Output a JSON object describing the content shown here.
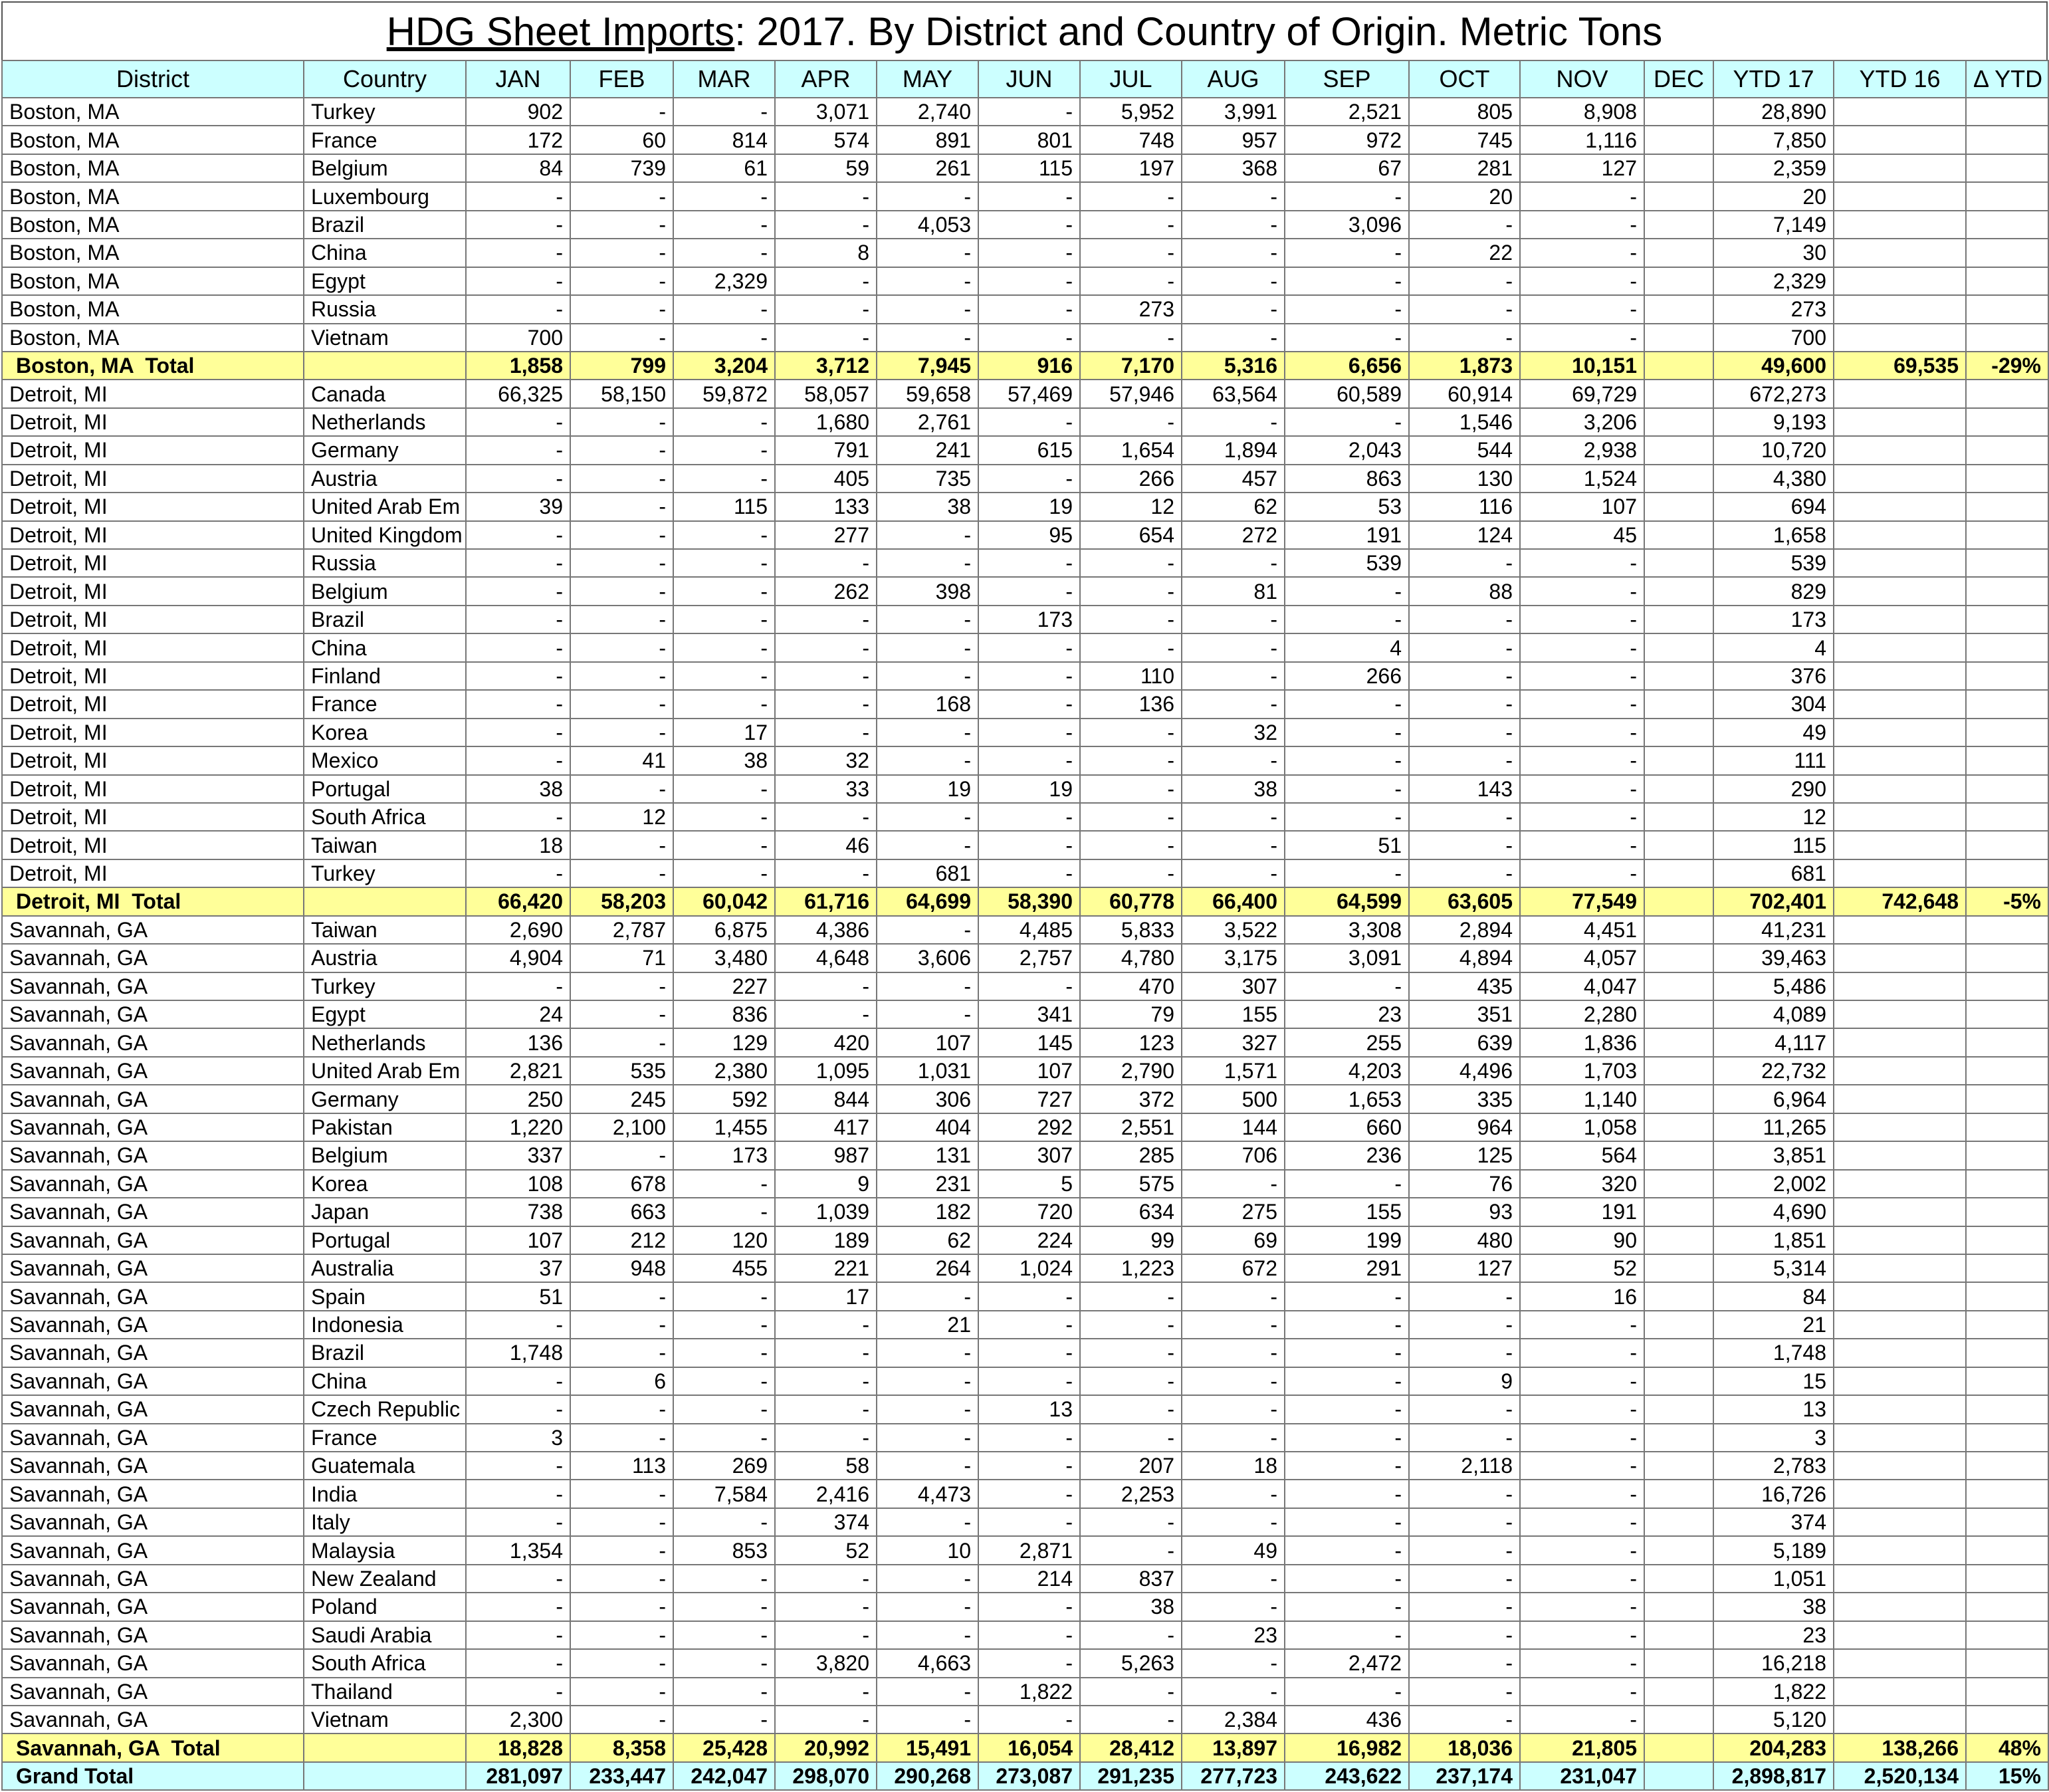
{
  "title": {
    "underlined": "HDG Sheet Imports",
    "rest": ": 2017. By District and Country of Origin. Metric Tons"
  },
  "columns": [
    "District",
    "Country",
    "JAN",
    "FEB",
    "MAR",
    "APR",
    "MAY",
    "JUN",
    "JUL",
    "AUG",
    "SEP",
    "OCT",
    "NOV",
    "DEC",
    "YTD 17",
    "YTD 16",
    "Δ YTD"
  ],
  "groups": [
    {
      "rows": [
        [
          "Boston, MA",
          "Turkey",
          "902",
          "-",
          "-",
          "3,071",
          "2,740",
          "-",
          "5,952",
          "3,991",
          "2,521",
          "805",
          "8,908",
          null,
          "28,890",
          null,
          null
        ],
        [
          "Boston, MA",
          "France",
          "172",
          "60",
          "814",
          "574",
          "891",
          "801",
          "748",
          "957",
          "972",
          "745",
          "1,116",
          null,
          "7,850",
          null,
          null
        ],
        [
          "Boston, MA",
          "Belgium",
          "84",
          "739",
          "61",
          "59",
          "261",
          "115",
          "197",
          "368",
          "67",
          "281",
          "127",
          null,
          "2,359",
          null,
          null
        ],
        [
          "Boston, MA",
          "Luxembourg",
          "-",
          "-",
          "-",
          "-",
          "-",
          "-",
          "-",
          "-",
          "-",
          "20",
          "-",
          null,
          "20",
          null,
          null
        ],
        [
          "Boston, MA",
          "Brazil",
          "-",
          "-",
          "-",
          "-",
          "4,053",
          "-",
          "-",
          "-",
          "3,096",
          "-",
          "-",
          null,
          "7,149",
          null,
          null
        ],
        [
          "Boston, MA",
          "China",
          "-",
          "-",
          "-",
          "8",
          "-",
          "-",
          "-",
          "-",
          "-",
          "22",
          "-",
          null,
          "30",
          null,
          null
        ],
        [
          "Boston, MA",
          "Egypt",
          "-",
          "-",
          "2,329",
          "-",
          "-",
          "-",
          "-",
          "-",
          "-",
          "-",
          "-",
          null,
          "2,329",
          null,
          null
        ],
        [
          "Boston, MA",
          "Russia",
          "-",
          "-",
          "-",
          "-",
          "-",
          "-",
          "273",
          "-",
          "-",
          "-",
          "-",
          null,
          "273",
          null,
          null
        ],
        [
          "Boston, MA",
          "Vietnam",
          "700",
          "-",
          "-",
          "-",
          "-",
          "-",
          "-",
          "-",
          "-",
          "-",
          "-",
          null,
          "700",
          null,
          null
        ]
      ],
      "total": [
        "Boston, MA  Total",
        null,
        "1,858",
        "799",
        "3,204",
        "3,712",
        "7,945",
        "916",
        "7,170",
        "5,316",
        "6,656",
        "1,873",
        "10,151",
        null,
        "49,600",
        "69,535",
        "-29%"
      ]
    },
    {
      "rows": [
        [
          "Detroit, MI",
          "Canada",
          "66,325",
          "58,150",
          "59,872",
          "58,057",
          "59,658",
          "57,469",
          "57,946",
          "63,564",
          "60,589",
          "60,914",
          "69,729",
          null,
          "672,273",
          null,
          null
        ],
        [
          "Detroit, MI",
          "Netherlands",
          "-",
          "-",
          "-",
          "1,680",
          "2,761",
          "-",
          "-",
          "-",
          "-",
          "1,546",
          "3,206",
          null,
          "9,193",
          null,
          null
        ],
        [
          "Detroit, MI",
          "Germany",
          "-",
          "-",
          "-",
          "791",
          "241",
          "615",
          "1,654",
          "1,894",
          "2,043",
          "544",
          "2,938",
          null,
          "10,720",
          null,
          null
        ],
        [
          "Detroit, MI",
          "Austria",
          "-",
          "-",
          "-",
          "405",
          "735",
          "-",
          "266",
          "457",
          "863",
          "130",
          "1,524",
          null,
          "4,380",
          null,
          null
        ],
        [
          "Detroit, MI",
          "United Arab Em",
          "39",
          "-",
          "115",
          "133",
          "38",
          "19",
          "12",
          "62",
          "53",
          "116",
          "107",
          null,
          "694",
          null,
          null
        ],
        [
          "Detroit, MI",
          "United Kingdom",
          "-",
          "-",
          "-",
          "277",
          "-",
          "95",
          "654",
          "272",
          "191",
          "124",
          "45",
          null,
          "1,658",
          null,
          null
        ],
        [
          "Detroit, MI",
          "Russia",
          "-",
          "-",
          "-",
          "-",
          "-",
          "-",
          "-",
          "-",
          "539",
          "-",
          "-",
          null,
          "539",
          null,
          null
        ],
        [
          "Detroit, MI",
          "Belgium",
          "-",
          "-",
          "-",
          "262",
          "398",
          "-",
          "-",
          "81",
          "-",
          "88",
          "-",
          null,
          "829",
          null,
          null
        ],
        [
          "Detroit, MI",
          "Brazil",
          "-",
          "-",
          "-",
          "-",
          "-",
          "173",
          "-",
          "-",
          "-",
          "-",
          "-",
          null,
          "173",
          null,
          null
        ],
        [
          "Detroit, MI",
          "China",
          "-",
          "-",
          "-",
          "-",
          "-",
          "-",
          "-",
          "-",
          "4",
          "-",
          "-",
          null,
          "4",
          null,
          null
        ],
        [
          "Detroit, MI",
          "Finland",
          "-",
          "-",
          "-",
          "-",
          "-",
          "-",
          "110",
          "-",
          "266",
          "-",
          "-",
          null,
          "376",
          null,
          null
        ],
        [
          "Detroit, MI",
          "France",
          "-",
          "-",
          "-",
          "-",
          "168",
          "-",
          "136",
          "-",
          "-",
          "-",
          "-",
          null,
          "304",
          null,
          null
        ],
        [
          "Detroit, MI",
          "Korea",
          "-",
          "-",
          "17",
          "-",
          "-",
          "-",
          "-",
          "32",
          "-",
          "-",
          "-",
          null,
          "49",
          null,
          null
        ],
        [
          "Detroit, MI",
          "Mexico",
          "-",
          "41",
          "38",
          "32",
          "-",
          "-",
          "-",
          "-",
          "-",
          "-",
          "-",
          null,
          "111",
          null,
          null
        ],
        [
          "Detroit, MI",
          "Portugal",
          "38",
          "-",
          "-",
          "33",
          "19",
          "19",
          "-",
          "38",
          "-",
          "143",
          "-",
          null,
          "290",
          null,
          null
        ],
        [
          "Detroit, MI",
          "South Africa",
          "-",
          "12",
          "-",
          "-",
          "-",
          "-",
          "-",
          "-",
          "-",
          "-",
          "-",
          null,
          "12",
          null,
          null
        ],
        [
          "Detroit, MI",
          "Taiwan",
          "18",
          "-",
          "-",
          "46",
          "-",
          "-",
          "-",
          "-",
          "51",
          "-",
          "-",
          null,
          "115",
          null,
          null
        ],
        [
          "Detroit, MI",
          "Turkey",
          "-",
          "-",
          "-",
          "-",
          "681",
          "-",
          "-",
          "-",
          "-",
          "-",
          "-",
          null,
          "681",
          null,
          null
        ]
      ],
      "total": [
        "Detroit, MI  Total",
        null,
        "66,420",
        "58,203",
        "60,042",
        "61,716",
        "64,699",
        "58,390",
        "60,778",
        "66,400",
        "64,599",
        "63,605",
        "77,549",
        null,
        "702,401",
        "742,648",
        "-5%"
      ]
    },
    {
      "rows": [
        [
          "Savannah, GA",
          "Taiwan",
          "2,690",
          "2,787",
          "6,875",
          "4,386",
          "-",
          "4,485",
          "5,833",
          "3,522",
          "3,308",
          "2,894",
          "4,451",
          null,
          "41,231",
          null,
          null
        ],
        [
          "Savannah, GA",
          "Austria",
          "4,904",
          "71",
          "3,480",
          "4,648",
          "3,606",
          "2,757",
          "4,780",
          "3,175",
          "3,091",
          "4,894",
          "4,057",
          null,
          "39,463",
          null,
          null
        ],
        [
          "Savannah, GA",
          "Turkey",
          "-",
          "-",
          "227",
          "-",
          "-",
          "-",
          "470",
          "307",
          "-",
          "435",
          "4,047",
          null,
          "5,486",
          null,
          null
        ],
        [
          "Savannah, GA",
          "Egypt",
          "24",
          "-",
          "836",
          "-",
          "-",
          "341",
          "79",
          "155",
          "23",
          "351",
          "2,280",
          null,
          "4,089",
          null,
          null
        ],
        [
          "Savannah, GA",
          "Netherlands",
          "136",
          "-",
          "129",
          "420",
          "107",
          "145",
          "123",
          "327",
          "255",
          "639",
          "1,836",
          null,
          "4,117",
          null,
          null
        ],
        [
          "Savannah, GA",
          "United Arab Em",
          "2,821",
          "535",
          "2,380",
          "1,095",
          "1,031",
          "107",
          "2,790",
          "1,571",
          "4,203",
          "4,496",
          "1,703",
          null,
          "22,732",
          null,
          null
        ],
        [
          "Savannah, GA",
          "Germany",
          "250",
          "245",
          "592",
          "844",
          "306",
          "727",
          "372",
          "500",
          "1,653",
          "335",
          "1,140",
          null,
          "6,964",
          null,
          null
        ],
        [
          "Savannah, GA",
          "Pakistan",
          "1,220",
          "2,100",
          "1,455",
          "417",
          "404",
          "292",
          "2,551",
          "144",
          "660",
          "964",
          "1,058",
          null,
          "11,265",
          null,
          null
        ],
        [
          "Savannah, GA",
          "Belgium",
          "337",
          "-",
          "173",
          "987",
          "131",
          "307",
          "285",
          "706",
          "236",
          "125",
          "564",
          null,
          "3,851",
          null,
          null
        ],
        [
          "Savannah, GA",
          "Korea",
          "108",
          "678",
          "-",
          "9",
          "231",
          "5",
          "575",
          "-",
          "-",
          "76",
          "320",
          null,
          "2,002",
          null,
          null
        ],
        [
          "Savannah, GA",
          "Japan",
          "738",
          "663",
          "-",
          "1,039",
          "182",
          "720",
          "634",
          "275",
          "155",
          "93",
          "191",
          null,
          "4,690",
          null,
          null
        ],
        [
          "Savannah, GA",
          "Portugal",
          "107",
          "212",
          "120",
          "189",
          "62",
          "224",
          "99",
          "69",
          "199",
          "480",
          "90",
          null,
          "1,851",
          null,
          null
        ],
        [
          "Savannah, GA",
          "Australia",
          "37",
          "948",
          "455",
          "221",
          "264",
          "1,024",
          "1,223",
          "672",
          "291",
          "127",
          "52",
          null,
          "5,314",
          null,
          null
        ],
        [
          "Savannah, GA",
          "Spain",
          "51",
          "-",
          "-",
          "17",
          "-",
          "-",
          "-",
          "-",
          "-",
          "-",
          "16",
          null,
          "84",
          null,
          null
        ],
        [
          "Savannah, GA",
          "Indonesia",
          "-",
          "-",
          "-",
          "-",
          "21",
          "-",
          "-",
          "-",
          "-",
          "-",
          "-",
          null,
          "21",
          null,
          null
        ],
        [
          "Savannah, GA",
          "Brazil",
          "1,748",
          "-",
          "-",
          "-",
          "-",
          "-",
          "-",
          "-",
          "-",
          "-",
          "-",
          null,
          "1,748",
          null,
          null
        ],
        [
          "Savannah, GA",
          "China",
          "-",
          "6",
          "-",
          "-",
          "-",
          "-",
          "-",
          "-",
          "-",
          "9",
          "-",
          null,
          "15",
          null,
          null
        ],
        [
          "Savannah, GA",
          "Czech Republic",
          "-",
          "-",
          "-",
          "-",
          "-",
          "13",
          "-",
          "-",
          "-",
          "-",
          "-",
          null,
          "13",
          null,
          null
        ],
        [
          "Savannah, GA",
          "France",
          "3",
          "-",
          "-",
          "-",
          "-",
          "-",
          "-",
          "-",
          "-",
          "-",
          "-",
          null,
          "3",
          null,
          null
        ],
        [
          "Savannah, GA",
          "Guatemala",
          "-",
          "113",
          "269",
          "58",
          "-",
          "-",
          "207",
          "18",
          "-",
          "2,118",
          "-",
          null,
          "2,783",
          null,
          null
        ],
        [
          "Savannah, GA",
          "India",
          "-",
          "-",
          "7,584",
          "2,416",
          "4,473",
          "-",
          "2,253",
          "-",
          "-",
          "-",
          "-",
          null,
          "16,726",
          null,
          null
        ],
        [
          "Savannah, GA",
          "Italy",
          "-",
          "-",
          "-",
          "374",
          "-",
          "-",
          "-",
          "-",
          "-",
          "-",
          "-",
          null,
          "374",
          null,
          null
        ],
        [
          "Savannah, GA",
          "Malaysia",
          "1,354",
          "-",
          "853",
          "52",
          "10",
          "2,871",
          "-",
          "49",
          "-",
          "-",
          "-",
          null,
          "5,189",
          null,
          null
        ],
        [
          "Savannah, GA",
          "New Zealand",
          "-",
          "-",
          "-",
          "-",
          "-",
          "214",
          "837",
          "-",
          "-",
          "-",
          "-",
          null,
          "1,051",
          null,
          null
        ],
        [
          "Savannah, GA",
          "Poland",
          "-",
          "-",
          "-",
          "-",
          "-",
          "-",
          "38",
          "-",
          "-",
          "-",
          "-",
          null,
          "38",
          null,
          null
        ],
        [
          "Savannah, GA",
          "Saudi Arabia",
          "-",
          "-",
          "-",
          "-",
          "-",
          "-",
          "-",
          "23",
          "-",
          "-",
          "-",
          null,
          "23",
          null,
          null
        ],
        [
          "Savannah, GA",
          "South Africa",
          "-",
          "-",
          "-",
          "3,820",
          "4,663",
          "-",
          "5,263",
          "-",
          "2,472",
          "-",
          "-",
          null,
          "16,218",
          null,
          null
        ],
        [
          "Savannah, GA",
          "Thailand",
          "-",
          "-",
          "-",
          "-",
          "-",
          "1,822",
          "-",
          "-",
          "-",
          "-",
          "-",
          null,
          "1,822",
          null,
          null
        ],
        [
          "Savannah, GA",
          "Vietnam",
          "2,300",
          "-",
          "-",
          "-",
          "-",
          "-",
          "-",
          "2,384",
          "436",
          "-",
          "-",
          null,
          "5,120",
          null,
          null
        ]
      ],
      "total": [
        "Savannah, GA  Total",
        null,
        "18,828",
        "8,358",
        "25,428",
        "20,992",
        "15,491",
        "16,054",
        "28,412",
        "13,897",
        "16,982",
        "18,036",
        "21,805",
        null,
        "204,283",
        "138,266",
        "48%"
      ]
    }
  ],
  "grand_total": [
    "Grand Total",
    null,
    "281,097",
    "233,447",
    "242,047",
    "298,070",
    "290,268",
    "273,087",
    "291,235",
    "277,723",
    "243,622",
    "237,174",
    "231,047",
    null,
    "2,898,817",
    "2,520,134",
    "15%"
  ]
}
